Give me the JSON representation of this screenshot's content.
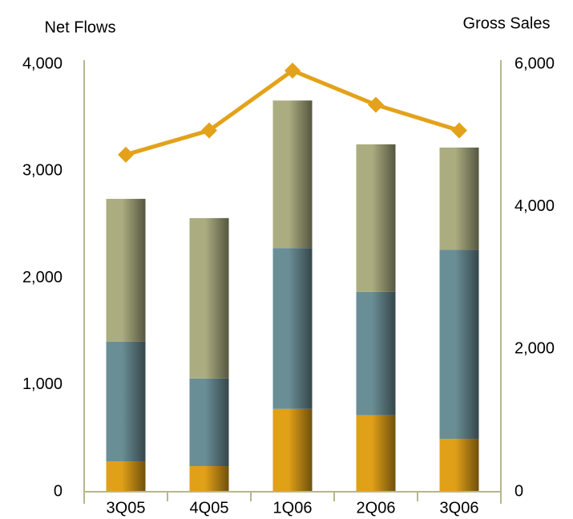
{
  "chart_data": {
    "type": "bar",
    "y_label": "Net Flows",
    "y2_label": "Gross Sales",
    "categories": [
      "3Q05",
      "4Q05",
      "1Q06",
      "2Q06",
      "3Q06"
    ],
    "series": [
      {
        "color": "#e0a018",
        "values": [
          285,
          240,
          775,
          715,
          495
        ]
      },
      {
        "color": "#6a8e96",
        "values": [
          1120,
          820,
          1505,
          1155,
          1770
        ]
      },
      {
        "color": "#abad80",
        "values": [
          1335,
          1500,
          1380,
          1380,
          955
        ]
      },
      {
        "type": "line",
        "axis": "y2",
        "color": "#e3a21a",
        "values": [
          4730,
          5070,
          5910,
          5430,
          5070
        ]
      }
    ],
    "ylim": [
      0,
      4000
    ],
    "yticks": [
      0,
      {
        "value": 1000,
        "label": "1,000"
      },
      {
        "value": 2000,
        "label": "2,000"
      },
      {
        "value": 3000,
        "label": "3,000"
      },
      {
        "value": 4000,
        "label": "4,000"
      }
    ],
    "y2lim": [
      0,
      6000
    ],
    "y2ticks": [
      0,
      {
        "value": 2000,
        "label": "2,000"
      },
      {
        "value": 4000,
        "label": "4,000"
      },
      {
        "value": 6000,
        "label": "6,000"
      }
    ],
    "axis_color": "#b7b68d"
  }
}
